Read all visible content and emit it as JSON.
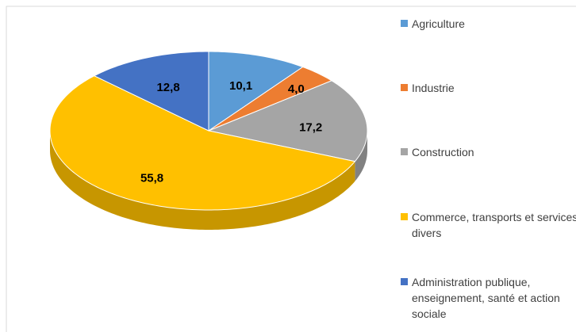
{
  "chart_data": {
    "type": "pie",
    "categories": [
      "Agriculture",
      "Industrie",
      "Construction",
      "Commerce, transports et services divers",
      "Administration publique, enseignement, santé et action sociale"
    ],
    "values": [
      10.1,
      4.0,
      17.2,
      55.8,
      12.8
    ],
    "value_labels": [
      "10,1",
      "4,0",
      "17,2",
      "55,8",
      "12,8"
    ],
    "colors": [
      "#5b9bd5",
      "#ed7d31",
      "#a5a5a5",
      "#ffc000",
      "#4472c4"
    ]
  }
}
